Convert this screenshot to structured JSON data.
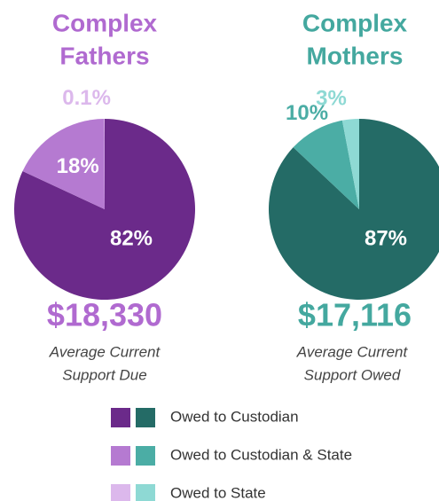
{
  "chart_data": [
    {
      "type": "pie",
      "title": [
        "Complex",
        "Fathers"
      ],
      "title_color": "#b06ad0",
      "categories": [
        "Owed to Custodian",
        "Owed to Custodian & State",
        "Owed to State"
      ],
      "values": [
        82,
        18,
        0.1
      ],
      "value_labels": [
        "82%",
        "18%",
        "0.1%"
      ],
      "colors": [
        "#6b2a8a",
        "#b57ad1",
        "#dcb8ec"
      ],
      "amount": "$18,330",
      "caption": [
        "Average Current",
        "Support Due"
      ]
    },
    {
      "type": "pie",
      "title": [
        "Complex",
        "Mothers"
      ],
      "title_color": "#44a89f",
      "categories": [
        "Owed to Custodian",
        "Owed to Custodian & State",
        "Owed to State"
      ],
      "values": [
        87,
        10,
        3
      ],
      "value_labels": [
        "87%",
        "10%",
        "3%"
      ],
      "colors": [
        "#246b66",
        "#4bada5",
        "#8ed9d4"
      ],
      "amount": "$17,116",
      "caption": [
        "Average Current",
        "Support Owed"
      ]
    }
  ]
}
